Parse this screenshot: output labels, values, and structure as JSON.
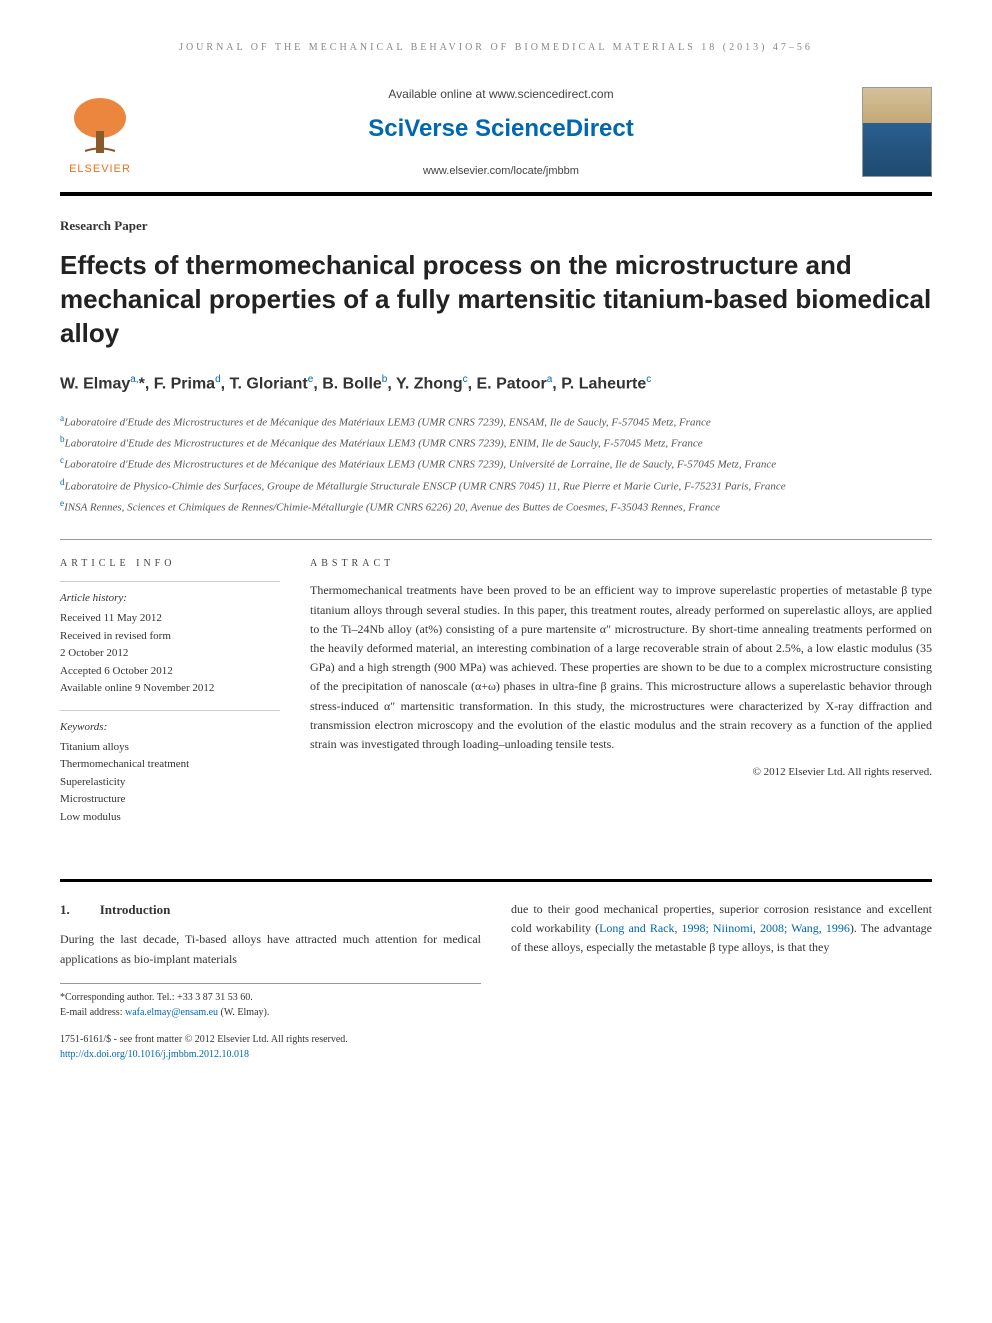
{
  "running_header": "JOURNAL OF THE MECHANICAL BEHAVIOR OF BIOMEDICAL MATERIALS 18 (2013) 47–56",
  "masthead": {
    "available": "Available online at www.sciencedirect.com",
    "brand": "SciVerse ScienceDirect",
    "journal_url": "www.elsevier.com/locate/jmbbm",
    "publisher": "ELSEVIER"
  },
  "article_type": "Research Paper",
  "title": "Effects of thermomechanical process on the microstructure and mechanical properties of a fully martensitic titanium-based biomedical alloy",
  "authors_html": "W. Elmay<sup>a,</sup>*, F. Prima<sup>d</sup>, T. Gloriant<sup>e</sup>, B. Bolle<sup>b</sup>, Y. Zhong<sup>c</sup>, E. Patoor<sup>a</sup>, P. Laheurte<sup>c</sup>",
  "affiliations": [
    {
      "key": "a",
      "text": "Laboratoire d'Etude des Microstructures et de Mécanique des Matériaux LEM3 (UMR CNRS 7239), ENSAM, Ile de Saucly, F-57045 Metz, France"
    },
    {
      "key": "b",
      "text": "Laboratoire d'Etude des Microstructures et de Mécanique des Matériaux LEM3 (UMR CNRS 7239), ENIM, Ile de Saucly, F-57045 Metz, France"
    },
    {
      "key": "c",
      "text": "Laboratoire d'Etude des Microstructures et de Mécanique des Matériaux LEM3 (UMR CNRS 7239), Université de Lorraine, Ile de Saucly, F-57045 Metz, France"
    },
    {
      "key": "d",
      "text": "Laboratoire de Physico-Chimie des Surfaces, Groupe de Métallurgie Structurale ENSCP (UMR CNRS 7045) 11, Rue Pierre et Marie Curie, F-75231 Paris, France"
    },
    {
      "key": "e",
      "text": "INSA Rennes, Sciences et Chimiques de Rennes/Chimie-Métallurgie (UMR CNRS 6226) 20, Avenue des Buttes de Coesmes, F-35043 Rennes, France"
    }
  ],
  "article_info": {
    "heading": "ARTICLE INFO",
    "history_label": "Article history:",
    "history": [
      "Received 11 May 2012",
      "Received in revised form",
      "2 October 2012",
      "Accepted 6 October 2012",
      "Available online 9 November 2012"
    ],
    "keywords_label": "Keywords:",
    "keywords": [
      "Titanium alloys",
      "Thermomechanical treatment",
      "Superelasticity",
      "Microstructure",
      "Low modulus"
    ]
  },
  "abstract": {
    "heading": "ABSTRACT",
    "text": "Thermomechanical treatments have been proved to be an efficient way to improve superelastic properties of metastable β type titanium alloys through several studies. In this paper, this treatment routes, already performed on superelastic alloys, are applied to the Ti–24Nb alloy (at%) consisting of a pure martensite α″ microstructure. By short-time annealing treatments performed on the heavily deformed material, an interesting combination of a large recoverable strain of about 2.5%, a low elastic modulus (35 GPa) and a high strength (900 MPa) was achieved. These properties are shown to be due to a complex microstructure consisting of the precipitation of nanoscale (α+ω) phases in ultra-fine β grains. This microstructure allows a superelastic behavior through stress-induced α″ martensitic transformation. In this study, the microstructures were characterized by X-ray diffraction and transmission electron microscopy and the evolution of the elastic modulus and the strain recovery as a function of the applied strain was investigated through loading–unloading tensile tests.",
    "copyright": "© 2012 Elsevier Ltd. All rights reserved."
  },
  "section1": {
    "num": "1.",
    "heading": "Introduction",
    "col1": "During the last decade, Ti-based alloys have attracted much attention for medical applications as bio-implant materials",
    "col2_pre": "due to their good mechanical properties, superior corrosion resistance and excellent cold workability (",
    "col2_cites": "Long and Rack, 1998; Niinomi, 2008; Wang, 1996",
    "col2_post": "). The advantage of these alloys, especially the metastable β type alloys, is that they"
  },
  "footnotes": {
    "corresponding": "*Corresponding author. Tel.: +33 3 87 31 53 60.",
    "email_label": "E-mail address: ",
    "email": "wafa.elmay@ensam.eu",
    "email_attrib": " (W. Elmay)."
  },
  "doi_block": {
    "line1": "1751-6161/$ - see front matter © 2012 Elsevier Ltd. All rights reserved.",
    "line2": "http://dx.doi.org/10.1016/j.jmbbm.2012.10.018"
  },
  "colors": {
    "link": "#0067b1",
    "publisher": "#e9711c",
    "text": "#333333",
    "rule": "#000000"
  }
}
